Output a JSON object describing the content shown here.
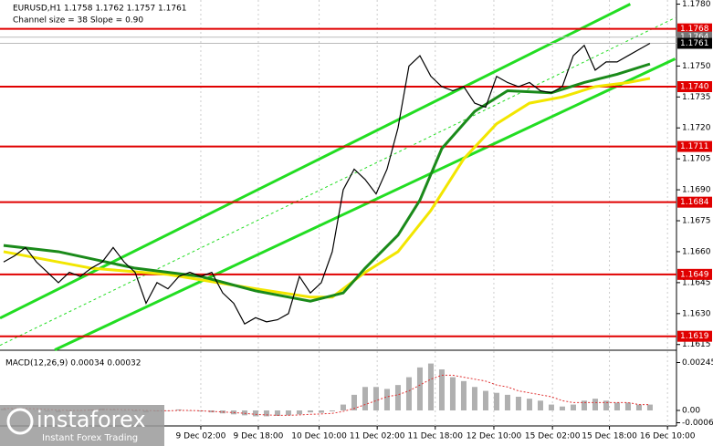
{
  "chart_data": {
    "type": "candlestick-terminal",
    "header": "EURUSD,H1  1.1758 1.1762 1.1757 1.1761",
    "subheader": "Channel size = 38 Slope = 0.90",
    "xlim": [
      -0.33,
      61.42
    ],
    "xticks": [
      {
        "value": 18,
        "label": "9 Dec 02:00"
      },
      {
        "value": 23.25,
        "label": "9 Dec 18:00"
      },
      {
        "value": 28.8,
        "label": "10 Dec 10:00"
      },
      {
        "value": 34.1,
        "label": "11 Dec 02:00"
      },
      {
        "value": 39.4,
        "label": "11 Dec 18:00"
      },
      {
        "value": 44.75,
        "label": "12 Dec 10:00"
      },
      {
        "value": 50.1,
        "label": "15 Dec 02:00"
      },
      {
        "value": 55.3,
        "label": "15 Dec 18:00"
      },
      {
        "value": 60.6,
        "label": "16 Dec 10:00"
      }
    ],
    "ylim": [
      1.1614,
      1.1782
    ],
    "yticks": [
      {
        "value": 1.178,
        "label": "1.1780"
      },
      {
        "value": 1.175,
        "label": "1.1750"
      },
      1.1735,
      {
        "value": 1.172,
        "label": "1.1720"
      },
      1.1705,
      {
        "value": 1.169,
        "label": "1.1690"
      },
      1.1675,
      {
        "value": 1.166,
        "label": "1.1660"
      },
      1.1645,
      {
        "value": 1.163,
        "label": "1.1630"
      },
      1.1615
    ],
    "levels": [
      {
        "value": 1.1768,
        "label": "1.1768"
      },
      {
        "value": 1.174,
        "label": "1.1740"
      },
      1.1711,
      1.1684,
      1.1649,
      1.1619
    ],
    "level_color": "#e00000",
    "price_markers": [
      1.1764,
      1.1761
    ],
    "close": {
      "color": "#000000",
      "values": [
        1.1655,
        1.1658,
        1.1662,
        1.1655,
        1.165,
        1.1645,
        1.165,
        1.1648,
        1.1652,
        1.1655,
        1.1662,
        1.1655,
        1.165,
        1.1635,
        1.1645,
        1.1642,
        1.1648,
        1.165,
        1.1648,
        1.165,
        1.164,
        1.1635,
        1.1625,
        1.1628,
        1.1626,
        1.1627,
        1.163,
        1.1648,
        1.164,
        1.1645,
        1.166,
        1.169,
        1.17,
        1.1695,
        1.1688,
        1.17,
        1.172,
        1.175,
        1.1755,
        1.1745,
        1.174,
        1.1738,
        1.174,
        1.1732,
        1.173,
        1.1745,
        1.1742,
        1.174,
        1.1742,
        1.1738,
        1.1737,
        1.174,
        1.1755,
        1.176,
        1.1748,
        1.1752,
        1.1752,
        1.1755,
        1.1758,
        1.1761
      ]
    },
    "ma_green": {
      "color": "#1a8a1a",
      "x": [
        0,
        5,
        12,
        18,
        23,
        28,
        31,
        33,
        36,
        38,
        40,
        43,
        46,
        50,
        53,
        56,
        59
      ],
      "values": [
        1.1663,
        1.166,
        1.1652,
        1.1648,
        1.1641,
        1.1636,
        1.164,
        1.1652,
        1.1668,
        1.1685,
        1.171,
        1.1728,
        1.1738,
        1.1737,
        1.1742,
        1.1746,
        1.1751
      ]
    },
    "ma_yellow": {
      "color": "#f2e600",
      "x": [
        0,
        8,
        15,
        23,
        28,
        30,
        33,
        36,
        39,
        42,
        45,
        48,
        51,
        54,
        57,
        59
      ],
      "values": [
        1.166,
        1.1652,
        1.1649,
        1.1642,
        1.1638,
        1.1638,
        1.165,
        1.166,
        1.168,
        1.1705,
        1.1722,
        1.1732,
        1.1735,
        1.174,
        1.1742,
        1.1744
      ]
    },
    "channel": {
      "color": "#22dd22",
      "upper": {
        "x": [
          -0.33,
          57.2
        ],
        "values": [
          1.16278,
          1.178
        ]
      },
      "lower": {
        "x": [
          4.67,
          61.3
        ],
        "values": [
          1.16124,
          1.17535
        ]
      },
      "middle": {
        "x": [
          -0.33,
          61.3
        ],
        "values": [
          1.16146,
          1.17734
        ]
      }
    },
    "macd": {
      "label": "MACD(12,26,9) 0.00034 0.00032",
      "ylim": [
        -0.0007,
        0.0028
      ],
      "yticks": [
        0.00245,
        {
          "value": 0,
          "label": "0.00"
        },
        -0.00063
      ],
      "hist_color": "#b0b0b0",
      "signal_color": "#e03030",
      "hist": [
        0.0001,
        0.0001,
        5e-05,
        0,
        -5e-05,
        -0.0001,
        -5e-05,
        0,
        5e-05,
        0.0001,
        5e-05,
        0,
        -5e-05,
        -0.0001,
        -5e-05,
        0,
        5e-05,
        0,
        -5e-05,
        -0.0001,
        -0.00015,
        -0.0002,
        -0.00025,
        -0.0003,
        -0.0003,
        -0.00028,
        -0.00025,
        -0.0002,
        -0.0001,
        -0.00012,
        -5e-05,
        0.0003,
        0.0008,
        0.0012,
        0.0012,
        0.0011,
        0.0013,
        0.0017,
        0.0022,
        0.0024,
        0.0021,
        0.0017,
        0.0015,
        0.0012,
        0.001,
        0.0009,
        0.0008,
        0.0007,
        0.0006,
        0.0005,
        0.0003,
        0.0002,
        0.0003,
        0.0005,
        0.0006,
        0.0005,
        0.0004,
        0.0004,
        0.0003,
        0.0003
      ],
      "signal": [
        0.0001,
        0.0001,
        0.0001,
        8e-05,
        5e-05,
        2e-05,
        0,
        0,
        2e-05,
        4e-05,
        5e-05,
        4e-05,
        2e-05,
        0,
        -2e-05,
        -2e-05,
        0,
        0,
        -2e-05,
        -5e-05,
        -8e-05,
        -0.00011,
        -0.00015,
        -0.0002,
        -0.00023,
        -0.00025,
        -0.00025,
        -0.00023,
        -0.0002,
        -0.00018,
        -0.00015,
        -5e-05,
        0.0001,
        0.0003,
        0.0005,
        0.0007,
        0.0008,
        0.001,
        0.0013,
        0.0016,
        0.0018,
        0.0018,
        0.0017,
        0.0016,
        0.0015,
        0.0013,
        0.0012,
        0.001,
        0.0009,
        0.0008,
        0.0007,
        0.0005,
        0.0004,
        0.0004,
        0.0004,
        0.0004,
        0.0004,
        0.0004,
        0.0003,
        0.0003
      ]
    },
    "logo": {
      "name": "instaforex",
      "tagline": "Instant Forex Trading"
    }
  }
}
